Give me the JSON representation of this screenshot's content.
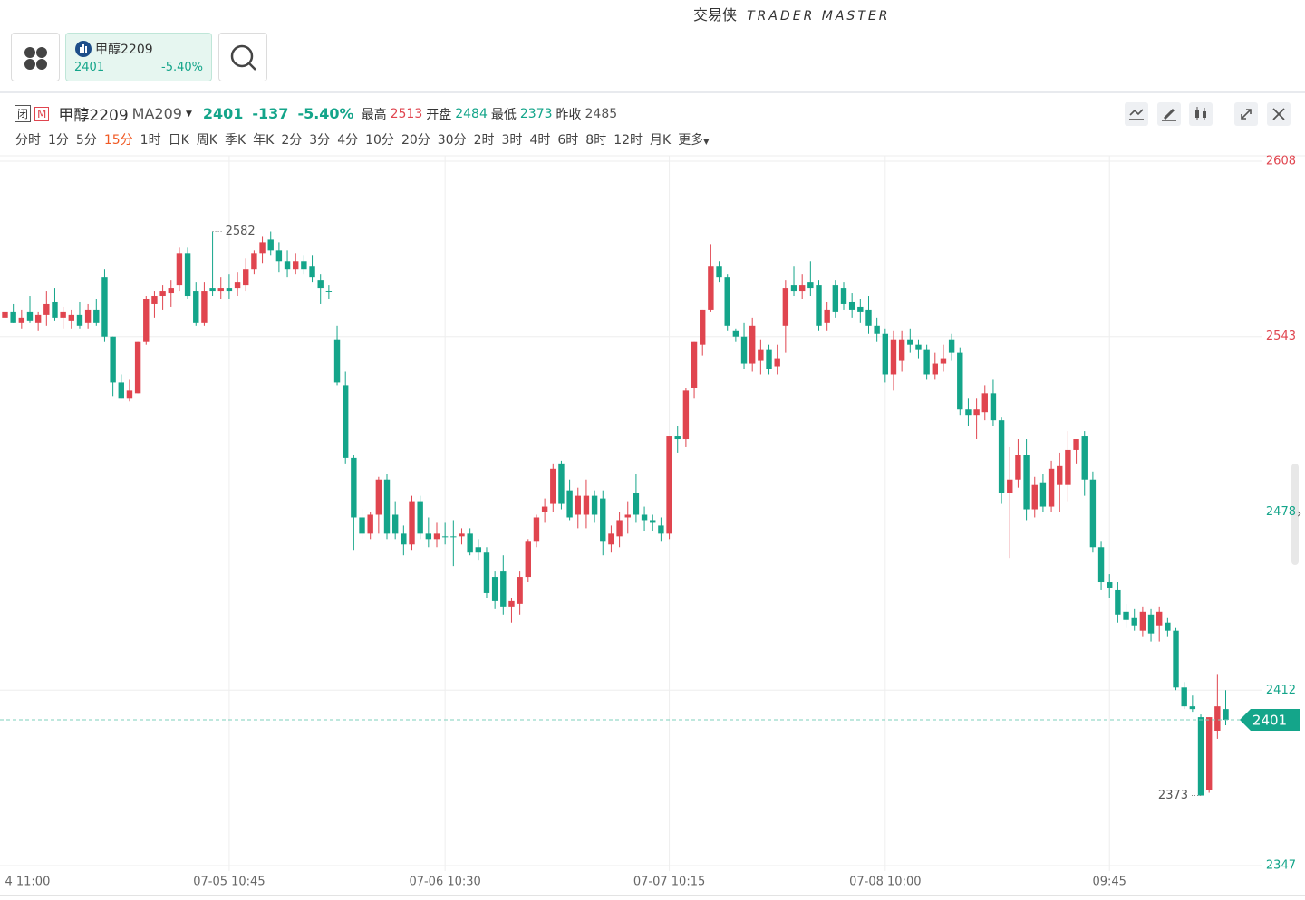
{
  "header": {
    "brand": "交易侠",
    "brand_en": "TRADER MASTER"
  },
  "tab": {
    "name": "甲醇2209",
    "price": "2401",
    "change": "-5.40%"
  },
  "quote": {
    "status": "闭",
    "m": "M",
    "symbol": "甲醇2209",
    "indicator": "MA209",
    "price": "2401",
    "change": "-137",
    "change_pct": "-5.40%",
    "high_label": "最高",
    "high": 2513,
    "open_label": "开盘",
    "open": 2484,
    "low_label": "最低",
    "low": 2373,
    "prev_close_label": "昨收",
    "prev_close": 2485
  },
  "periods": [
    {
      "label": "分时",
      "active": false
    },
    {
      "label": "1分",
      "active": false
    },
    {
      "label": "5分",
      "active": false
    },
    {
      "label": "15分",
      "active": true
    },
    {
      "label": "1时",
      "active": false
    },
    {
      "label": "日K",
      "active": false
    },
    {
      "label": "周K",
      "active": false
    },
    {
      "label": "季K",
      "active": false
    },
    {
      "label": "年K",
      "active": false
    },
    {
      "label": "2分",
      "active": false
    },
    {
      "label": "3分",
      "active": false
    },
    {
      "label": "4分",
      "active": false
    },
    {
      "label": "10分",
      "active": false
    },
    {
      "label": "20分",
      "active": false
    },
    {
      "label": "30分",
      "active": false
    },
    {
      "label": "2时",
      "active": false
    },
    {
      "label": "3时",
      "active": false
    },
    {
      "label": "4时",
      "active": false
    },
    {
      "label": "6时",
      "active": false
    },
    {
      "label": "8时",
      "active": false
    },
    {
      "label": "12时",
      "active": false
    },
    {
      "label": "月K",
      "active": false
    },
    {
      "label": "更多",
      "active": false
    }
  ],
  "chart_data": {
    "type": "candlestick",
    "up_color": "#e0454f",
    "down_color": "#14a58a",
    "xlim": [
      -0.6,
      150
    ],
    "ylim": [
      2345,
      2610
    ],
    "yticks": [
      2347,
      2412,
      2478,
      2543,
      2608
    ],
    "xticks": [
      {
        "value": 0,
        "label": "4 11:00"
      },
      {
        "value": 27,
        "label": "07-05 10:45"
      },
      {
        "value": 53,
        "label": "07-06 10:30"
      },
      {
        "value": 80,
        "label": "07-07 10:15"
      },
      {
        "value": 106,
        "label": "07-08 10:00"
      },
      {
        "value": 133,
        "label": "09:45"
      }
    ],
    "last_price": 2401,
    "annotations": [
      {
        "x": 25,
        "value": 2582
      },
      {
        "x": 144,
        "value": 2373
      }
    ],
    "ohlc": [
      [
        2550,
        2556,
        2545,
        2552
      ],
      [
        2552,
        2555,
        2548,
        2548
      ],
      [
        2548,
        2553,
        2546,
        2550
      ],
      [
        2552,
        2558,
        2548,
        2549
      ],
      [
        2548,
        2552,
        2545,
        2551
      ],
      [
        2551,
        2560,
        2547,
        2555
      ],
      [
        2556,
        2561,
        2549,
        2550
      ],
      [
        2550,
        2554,
        2546,
        2552
      ],
      [
        2549,
        2553,
        2546,
        2551
      ],
      [
        2551,
        2556,
        2546,
        2547
      ],
      [
        2548,
        2555,
        2546,
        2553
      ],
      [
        2553,
        2557,
        2547,
        2548
      ],
      [
        2565,
        2568,
        2541,
        2543
      ],
      [
        2543,
        2543,
        2521,
        2526
      ],
      [
        2526,
        2529,
        2520,
        2520
      ],
      [
        2520,
        2527,
        2519,
        2523
      ],
      [
        2522,
        2541,
        2522,
        2541
      ],
      [
        2541,
        2558,
        2540,
        2557
      ],
      [
        2555,
        2560,
        2550,
        2558
      ],
      [
        2558,
        2562,
        2553,
        2560
      ],
      [
        2559,
        2564,
        2554,
        2561
      ],
      [
        2562,
        2576,
        2560,
        2574
      ],
      [
        2574,
        2576,
        2557,
        2558
      ],
      [
        2560,
        2563,
        2547,
        2548
      ],
      [
        2548,
        2563,
        2547,
        2560
      ],
      [
        2561,
        2582,
        2558,
        2560
      ],
      [
        2560,
        2565,
        2557,
        2561
      ],
      [
        2561,
        2566,
        2557,
        2560
      ],
      [
        2561,
        2567,
        2558,
        2563
      ],
      [
        2562,
        2572,
        2560,
        2568
      ],
      [
        2568,
        2575,
        2566,
        2574
      ],
      [
        2574,
        2580,
        2570,
        2578
      ],
      [
        2579,
        2582,
        2573,
        2575
      ],
      [
        2575,
        2578,
        2567,
        2571
      ],
      [
        2571,
        2575,
        2565,
        2568
      ],
      [
        2568,
        2574,
        2566,
        2571
      ],
      [
        2571,
        2573,
        2566,
        2568
      ],
      [
        2569,
        2573,
        2563,
        2565
      ],
      [
        2564,
        2566,
        2555,
        2561
      ],
      [
        2560,
        2562,
        2557,
        2560
      ],
      [
        2542,
        2547,
        2525,
        2526
      ],
      [
        2525,
        2530,
        2496,
        2498
      ],
      [
        2498,
        2499,
        2464,
        2476
      ],
      [
        2476,
        2479,
        2468,
        2470
      ],
      [
        2470,
        2478,
        2468,
        2477
      ],
      [
        2477,
        2491,
        2470,
        2490
      ],
      [
        2490,
        2492,
        2468,
        2470
      ],
      [
        2477,
        2482,
        2468,
        2470
      ],
      [
        2470,
        2473,
        2462,
        2466
      ],
      [
        2466,
        2484,
        2464,
        2482
      ],
      [
        2482,
        2484,
        2468,
        2470
      ],
      [
        2470,
        2476,
        2465,
        2468
      ],
      [
        2468,
        2474,
        2465,
        2470
      ],
      [
        2469,
        2474,
        2466,
        2469
      ],
      [
        2469,
        2475,
        2458,
        2469
      ],
      [
        2469,
        2472,
        2466,
        2470
      ],
      [
        2470,
        2472,
        2462,
        2463
      ],
      [
        2465,
        2468,
        2460,
        2463
      ],
      [
        2463,
        2465,
        2446,
        2448
      ],
      [
        2454,
        2456,
        2442,
        2445
      ],
      [
        2456,
        2462,
        2440,
        2443
      ],
      [
        2443,
        2446,
        2437,
        2445
      ],
      [
        2444,
        2456,
        2440,
        2454
      ],
      [
        2454,
        2468,
        2452,
        2467
      ],
      [
        2467,
        2477,
        2465,
        2476
      ],
      [
        2478,
        2483,
        2474,
        2480
      ],
      [
        2481,
        2496,
        2478,
        2494
      ],
      [
        2496,
        2497,
        2479,
        2481
      ],
      [
        2486,
        2490,
        2475,
        2476
      ],
      [
        2477,
        2487,
        2472,
        2484
      ],
      [
        2477,
        2490,
        2472,
        2484
      ],
      [
        2484,
        2486,
        2474,
        2477
      ],
      [
        2483,
        2486,
        2462,
        2467
      ],
      [
        2466,
        2473,
        2463,
        2470
      ],
      [
        2469,
        2478,
        2465,
        2475
      ],
      [
        2476,
        2482,
        2470,
        2477
      ],
      [
        2485,
        2492,
        2474,
        2477
      ],
      [
        2477,
        2480,
        2471,
        2475
      ],
      [
        2475,
        2477,
        2471,
        2474
      ],
      [
        2473,
        2476,
        2467,
        2470
      ],
      [
        2470,
        2506,
        2468,
        2506
      ],
      [
        2506,
        2510,
        2500,
        2505
      ],
      [
        2505,
        2524,
        2502,
        2523
      ],
      [
        2524,
        2541,
        2520,
        2541
      ],
      [
        2540,
        2553,
        2536,
        2553
      ],
      [
        2553,
        2577,
        2552,
        2569
      ],
      [
        2569,
        2571,
        2563,
        2565
      ],
      [
        2565,
        2566,
        2545,
        2547
      ],
      [
        2545,
        2546,
        2541,
        2543
      ],
      [
        2543,
        2548,
        2531,
        2533
      ],
      [
        2533,
        2550,
        2530,
        2547
      ],
      [
        2534,
        2542,
        2529,
        2538
      ],
      [
        2538,
        2540,
        2529,
        2531
      ],
      [
        2532,
        2540,
        2529,
        2535
      ],
      [
        2547,
        2564,
        2537,
        2561
      ],
      [
        2562,
        2569,
        2558,
        2560
      ],
      [
        2560,
        2566,
        2557,
        2562
      ],
      [
        2563,
        2571,
        2558,
        2561
      ],
      [
        2562,
        2564,
        2545,
        2547
      ],
      [
        2548,
        2556,
        2545,
        2553
      ],
      [
        2562,
        2564,
        2550,
        2552
      ],
      [
        2561,
        2563,
        2553,
        2555
      ],
      [
        2556,
        2559,
        2550,
        2553
      ],
      [
        2554,
        2557,
        2548,
        2552
      ],
      [
        2553,
        2558,
        2544,
        2547
      ],
      [
        2547,
        2550,
        2541,
        2544
      ],
      [
        2544,
        2546,
        2526,
        2529
      ],
      [
        2529,
        2545,
        2523,
        2542
      ],
      [
        2534,
        2545,
        2530,
        2542
      ],
      [
        2542,
        2546,
        2537,
        2540
      ],
      [
        2540,
        2542,
        2535,
        2538
      ],
      [
        2538,
        2540,
        2527,
        2529
      ],
      [
        2529,
        2537,
        2527,
        2533
      ],
      [
        2533,
        2540,
        2530,
        2535
      ],
      [
        2542,
        2544,
        2534,
        2537
      ],
      [
        2537,
        2539,
        2514,
        2516
      ],
      [
        2516,
        2520,
        2510,
        2514
      ],
      [
        2514,
        2520,
        2505,
        2516
      ],
      [
        2515,
        2525,
        2512,
        2522
      ],
      [
        2522,
        2527,
        2510,
        2512
      ],
      [
        2512,
        2513,
        2481,
        2485
      ],
      [
        2485,
        2502,
        2461,
        2490
      ],
      [
        2490,
        2505,
        2487,
        2499
      ],
      [
        2499,
        2505,
        2475,
        2479
      ],
      [
        2479,
        2491,
        2476,
        2488
      ],
      [
        2489,
        2492,
        2478,
        2480
      ],
      [
        2480,
        2497,
        2478,
        2494
      ],
      [
        2488,
        2500,
        2478,
        2495
      ],
      [
        2488,
        2508,
        2482,
        2501
      ],
      [
        2501,
        2505,
        2496,
        2505
      ],
      [
        2506,
        2508,
        2484,
        2490
      ],
      [
        2490,
        2493,
        2463,
        2465
      ],
      [
        2465,
        2467,
        2449,
        2452
      ],
      [
        2452,
        2455,
        2446,
        2450
      ],
      [
        2449,
        2452,
        2437,
        2440
      ],
      [
        2441,
        2444,
        2435,
        2438
      ],
      [
        2439,
        2442,
        2434,
        2436
      ],
      [
        2434,
        2443,
        2432,
        2441
      ],
      [
        2440,
        2442,
        2430,
        2433
      ],
      [
        2436,
        2443,
        2430,
        2441
      ],
      [
        2437,
        2439,
        2432,
        2434
      ],
      [
        2434,
        2435,
        2412,
        2413
      ],
      [
        2413,
        2415,
        2405,
        2406
      ],
      [
        2406,
        2410,
        2404,
        2405
      ],
      [
        2402,
        2403,
        2373,
        2373
      ],
      [
        2375,
        2402,
        2374,
        2402
      ],
      [
        2397,
        2418,
        2394,
        2406
      ],
      [
        2405,
        2412,
        2399,
        2401
      ]
    ]
  }
}
